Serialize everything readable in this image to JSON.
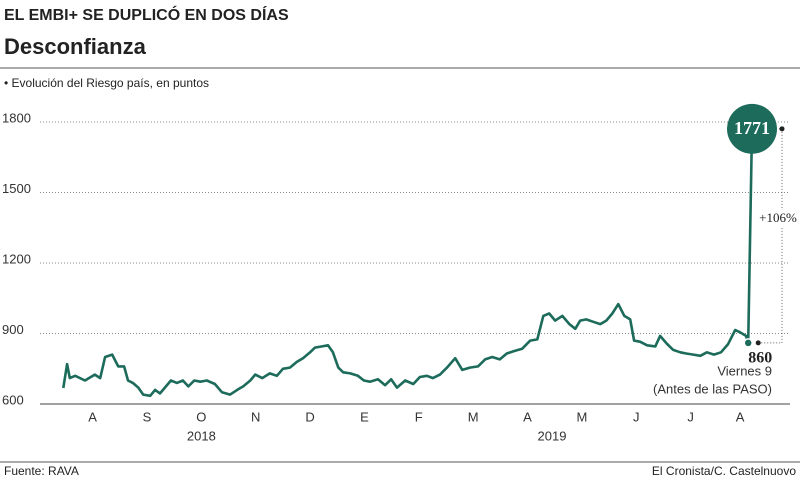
{
  "chart_data": {
    "type": "line",
    "supertitle": "EL EMBI+ SE DUPLICÓ EN DOS DÍAS",
    "title": "Desconfianza",
    "subtitle": "• Evolución del Riesgo país, en puntos",
    "x": [
      -0.04,
      0.03,
      0.08,
      0.18,
      0.36,
      0.54,
      0.64,
      0.73,
      0.86,
      0.97,
      1.08,
      1.15,
      1.24,
      1.34,
      1.43,
      1.56,
      1.65,
      1.74,
      1.83,
      1.94,
      2.05,
      2.16,
      2.26,
      2.37,
      2.48,
      2.6,
      2.75,
      2.88,
      3.03,
      3.16,
      3.27,
      3.4,
      3.49,
      3.62,
      3.76,
      3.89,
      4.0,
      4.13,
      4.26,
      4.37,
      4.5,
      4.59,
      4.72,
      4.83,
      4.92,
      5.02,
      5.11,
      5.24,
      5.38,
      5.49,
      5.6,
      5.75,
      5.88,
      5.99,
      6.1,
      6.25,
      6.4,
      6.52,
      6.65,
      6.76,
      6.89,
      7.02,
      7.17,
      7.3,
      7.44,
      7.59,
      7.72,
      7.85,
      7.99,
      8.12,
      8.25,
      8.4,
      8.55,
      8.68,
      8.79,
      8.9,
      9.01,
      9.14,
      9.27,
      9.38,
      9.47,
      9.58,
      9.71,
      9.84,
      9.95,
      10.06,
      10.17,
      10.28,
      10.39,
      10.46,
      10.57,
      10.7,
      10.85,
      10.94,
      11.07,
      11.18,
      11.31,
      11.42,
      11.55,
      11.68,
      11.8,
      11.93,
      12.06,
      12.19,
      12.32,
      12.41,
      12.52,
      12.56,
      12.63
    ],
    "values": [
      668,
      770,
      710,
      720,
      700,
      725,
      710,
      800,
      810,
      760,
      760,
      700,
      690,
      670,
      640,
      635,
      660,
      645,
      670,
      700,
      690,
      700,
      675,
      700,
      695,
      700,
      685,
      650,
      640,
      660,
      675,
      700,
      725,
      710,
      730,
      720,
      750,
      755,
      780,
      795,
      820,
      840,
      845,
      850,
      820,
      755,
      735,
      730,
      720,
      700,
      695,
      705,
      680,
      705,
      670,
      700,
      685,
      715,
      720,
      710,
      725,
      755,
      795,
      745,
      755,
      760,
      790,
      800,
      790,
      815,
      825,
      835,
      870,
      875,
      975,
      985,
      955,
      975,
      940,
      920,
      955,
      960,
      950,
      940,
      955,
      985,
      1025,
      975,
      960,
      870,
      865,
      850,
      845,
      890,
      855,
      830,
      820,
      815,
      810,
      805,
      820,
      810,
      820,
      855,
      915,
      905,
      890,
      860,
      1771
    ],
    "color": "#1d6b5b",
    "xlim": [
      -0.1,
      13.2
    ],
    "xticks": [
      {
        "value": 0.5,
        "label": "A"
      },
      {
        "value": 1.5,
        "label": "S"
      },
      {
        "value": 2.5,
        "label": "O"
      },
      {
        "value": 3.5,
        "label": "N"
      },
      {
        "value": 4.5,
        "label": "D"
      },
      {
        "value": 5.5,
        "label": "E"
      },
      {
        "value": 6.5,
        "label": "F"
      },
      {
        "value": 7.5,
        "label": "M"
      },
      {
        "value": 8.5,
        "label": "A"
      },
      {
        "value": 9.5,
        "label": "M"
      },
      {
        "value": 10.5,
        "label": "J"
      },
      {
        "value": 11.5,
        "label": "J"
      },
      {
        "value": 12.41,
        "label": "A"
      }
    ],
    "year_labels": [
      {
        "value": 2.5,
        "label": "2018"
      },
      {
        "value": 8.95,
        "label": "2019"
      }
    ],
    "ylim": [
      600,
      1800
    ],
    "yticks": [
      600,
      900,
      1200,
      1500,
      1800
    ],
    "grid": true,
    "change_label": "+106%",
    "last_note": [
      "Viernes 9",
      "(Antes de las PASO)"
    ],
    "source": "Fuente: RAVA",
    "credit": "El Cronista/C. Castelnuovo"
  }
}
